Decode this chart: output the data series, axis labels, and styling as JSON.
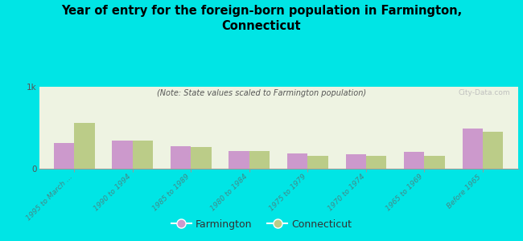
{
  "title": "Year of entry for the foreign-born population in Farmington,\nConnecticut",
  "subtitle": "(Note: State values scaled to Farmington population)",
  "categories": [
    "1995 to March ...",
    "1990 to 1994",
    "1985 to 1989",
    "1980 to 1984",
    "1975 to 1979",
    "1970 to 1974",
    "1965 to 1969",
    "Before 1965"
  ],
  "farmington_values": [
    310,
    340,
    270,
    220,
    190,
    180,
    210,
    490
  ],
  "connecticut_values": [
    560,
    340,
    265,
    215,
    160,
    160,
    155,
    450
  ],
  "farmington_color": "#cc99cc",
  "connecticut_color": "#bbcc88",
  "background_color": "#00e5e5",
  "plot_bg": "#eef3e2",
  "ylim": [
    0,
    1000
  ],
  "bar_width": 0.35,
  "watermark": "City-Data.com"
}
